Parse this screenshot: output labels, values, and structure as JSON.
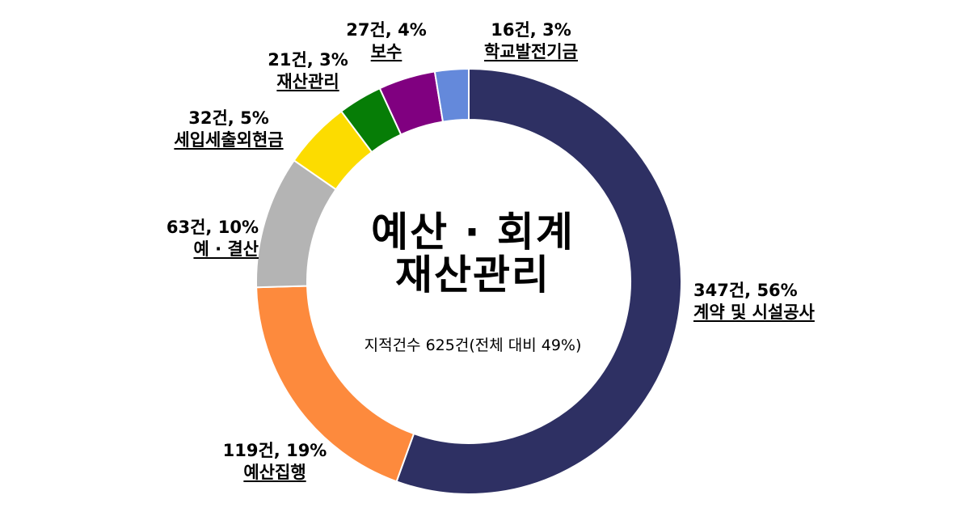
{
  "chart_data": {
    "type": "pie",
    "style": "donut",
    "title": "예산 · 회계",
    "title2": "재산관리",
    "subtitle": "지적건수 625건(전체 대비 49%)",
    "slices": [
      {
        "name": "계약 및 시설공사",
        "value": 347,
        "count_label": "347건, 56%",
        "color": "#2e3063"
      },
      {
        "name": "예산집행",
        "value": 119,
        "count_label": "119건, 19%",
        "color": "#fd8a3d"
      },
      {
        "name": "예 · 결산",
        "value": 63,
        "count_label": "63건, 10%",
        "color": "#b4b4b4"
      },
      {
        "name": "세입세출외현금",
        "value": 32,
        "count_label": "32건, 5%",
        "color": "#fcdc00"
      },
      {
        "name": "재산관리",
        "value": 21,
        "count_label": "21건, 3%",
        "color": "#067d06"
      },
      {
        "name": "보수",
        "value": 27,
        "count_label": "27건, 4%",
        "color": "#800080"
      },
      {
        "name": "학교발전기금",
        "value": 16,
        "count_label": "16건, 3%",
        "color": "#6489db"
      }
    ]
  }
}
